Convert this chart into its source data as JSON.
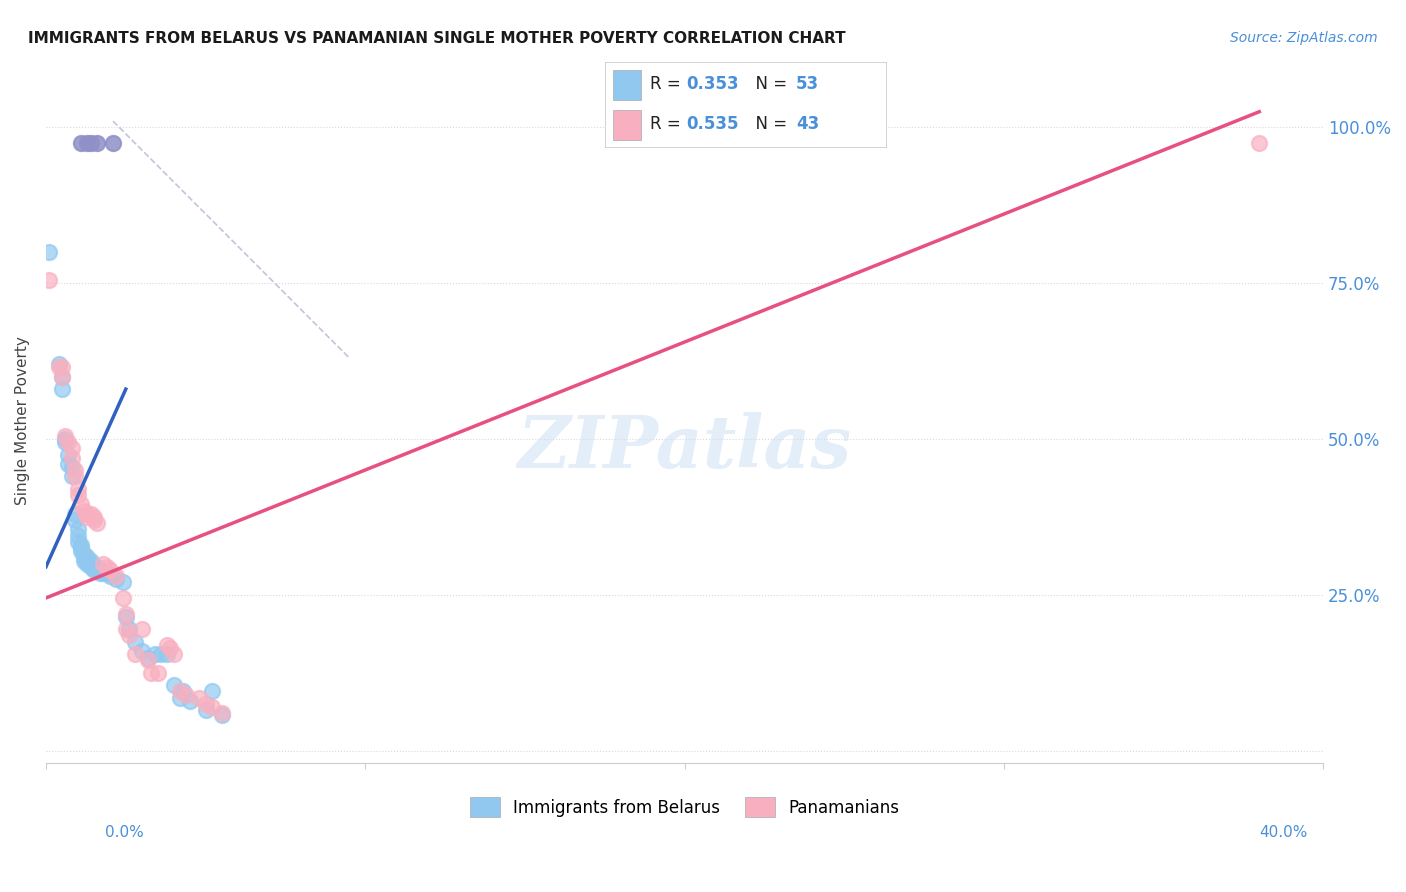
{
  "title": "IMMIGRANTS FROM BELARUS VS PANAMANIAN SINGLE MOTHER POVERTY CORRELATION CHART",
  "source": "Source: ZipAtlas.com",
  "ylabel": "Single Mother Poverty",
  "legend_blue": {
    "R": 0.353,
    "N": 53,
    "label": "Immigrants from Belarus"
  },
  "legend_pink": {
    "R": 0.535,
    "N": 43,
    "label": "Panamanians"
  },
  "xlim": [
    0.0,
    0.4
  ],
  "ylim": [
    -0.02,
    1.08
  ],
  "background_color": "#ffffff",
  "blue_color": "#90c8f0",
  "pink_color": "#f8b0c0",
  "blue_line_color": "#3060c0",
  "pink_line_color": "#e85080",
  "dashed_line_color": "#b0b8d0",
  "blue_scatter": [
    [
      0.001,
      0.8
    ],
    [
      0.004,
      0.62
    ],
    [
      0.005,
      0.6
    ],
    [
      0.005,
      0.58
    ],
    [
      0.006,
      0.5
    ],
    [
      0.006,
      0.495
    ],
    [
      0.007,
      0.475
    ],
    [
      0.007,
      0.46
    ],
    [
      0.008,
      0.455
    ],
    [
      0.008,
      0.44
    ],
    [
      0.009,
      0.38
    ],
    [
      0.009,
      0.37
    ],
    [
      0.01,
      0.355
    ],
    [
      0.01,
      0.345
    ],
    [
      0.01,
      0.335
    ],
    [
      0.011,
      0.33
    ],
    [
      0.011,
      0.325
    ],
    [
      0.011,
      0.32
    ],
    [
      0.012,
      0.315
    ],
    [
      0.012,
      0.31
    ],
    [
      0.012,
      0.305
    ],
    [
      0.013,
      0.31
    ],
    [
      0.013,
      0.305
    ],
    [
      0.013,
      0.3
    ],
    [
      0.014,
      0.305
    ],
    [
      0.014,
      0.3
    ],
    [
      0.014,
      0.295
    ],
    [
      0.015,
      0.295
    ],
    [
      0.015,
      0.29
    ],
    [
      0.016,
      0.295
    ],
    [
      0.016,
      0.29
    ],
    [
      0.017,
      0.29
    ],
    [
      0.017,
      0.285
    ],
    [
      0.018,
      0.285
    ],
    [
      0.019,
      0.285
    ],
    [
      0.02,
      0.28
    ],
    [
      0.022,
      0.275
    ],
    [
      0.024,
      0.27
    ],
    [
      0.025,
      0.215
    ],
    [
      0.026,
      0.195
    ],
    [
      0.028,
      0.175
    ],
    [
      0.03,
      0.16
    ],
    [
      0.032,
      0.148
    ],
    [
      0.034,
      0.155
    ],
    [
      0.036,
      0.155
    ],
    [
      0.038,
      0.155
    ],
    [
      0.04,
      0.105
    ],
    [
      0.042,
      0.085
    ],
    [
      0.043,
      0.095
    ],
    [
      0.045,
      0.08
    ],
    [
      0.05,
      0.065
    ],
    [
      0.052,
      0.095
    ],
    [
      0.055,
      0.058
    ]
  ],
  "pink_scatter": [
    [
      0.001,
      0.755
    ],
    [
      0.004,
      0.615
    ],
    [
      0.005,
      0.615
    ],
    [
      0.005,
      0.6
    ],
    [
      0.006,
      0.505
    ],
    [
      0.007,
      0.495
    ],
    [
      0.008,
      0.485
    ],
    [
      0.008,
      0.47
    ],
    [
      0.009,
      0.45
    ],
    [
      0.009,
      0.44
    ],
    [
      0.01,
      0.42
    ],
    [
      0.01,
      0.41
    ],
    [
      0.011,
      0.395
    ],
    [
      0.012,
      0.385
    ],
    [
      0.013,
      0.38
    ],
    [
      0.013,
      0.375
    ],
    [
      0.014,
      0.38
    ],
    [
      0.015,
      0.375
    ],
    [
      0.015,
      0.37
    ],
    [
      0.016,
      0.365
    ],
    [
      0.018,
      0.3
    ],
    [
      0.019,
      0.295
    ],
    [
      0.02,
      0.29
    ],
    [
      0.022,
      0.28
    ],
    [
      0.024,
      0.245
    ],
    [
      0.025,
      0.22
    ],
    [
      0.025,
      0.195
    ],
    [
      0.026,
      0.185
    ],
    [
      0.028,
      0.155
    ],
    [
      0.03,
      0.195
    ],
    [
      0.032,
      0.145
    ],
    [
      0.033,
      0.125
    ],
    [
      0.035,
      0.125
    ],
    [
      0.038,
      0.17
    ],
    [
      0.039,
      0.165
    ],
    [
      0.04,
      0.155
    ],
    [
      0.042,
      0.095
    ],
    [
      0.044,
      0.09
    ],
    [
      0.048,
      0.085
    ],
    [
      0.05,
      0.075
    ],
    [
      0.052,
      0.07
    ],
    [
      0.055,
      0.06
    ],
    [
      0.38,
      0.975
    ]
  ],
  "purple_dots": [
    [
      0.011,
      0.975
    ],
    [
      0.013,
      0.975
    ],
    [
      0.014,
      0.975
    ],
    [
      0.016,
      0.975
    ],
    [
      0.021,
      0.975
    ]
  ],
  "blue_line": {
    "x0": 0.0,
    "y0": 0.295,
    "x1": 0.025,
    "y1": 0.58
  },
  "pink_line": {
    "x0": 0.0,
    "y0": 0.245,
    "x1": 0.38,
    "y1": 1.025
  },
  "dash_line": {
    "x0": 0.021,
    "y0": 1.01,
    "x1": 0.095,
    "y1": 0.63
  }
}
